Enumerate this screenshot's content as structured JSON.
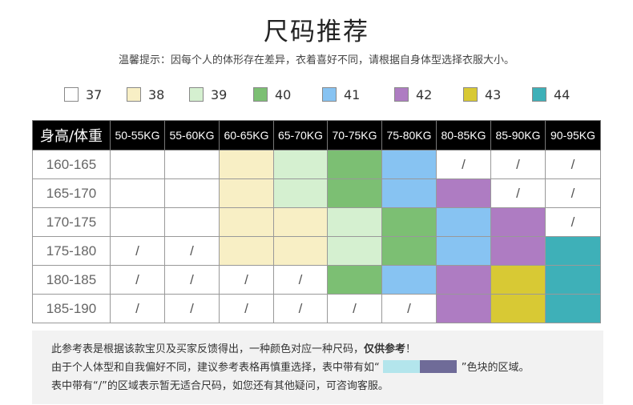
{
  "title": "尺码推荐",
  "tip": "温馨提示：因每个人的体形存在差异，衣着喜好不同，请根据自身体型选择衣服大小。",
  "legend": [
    {
      "size": "37",
      "color": "#ffffff"
    },
    {
      "size": "38",
      "color": "#f8efc5"
    },
    {
      "size": "39",
      "color": "#d5f0d0"
    },
    {
      "size": "40",
      "color": "#7cbf73"
    },
    {
      "size": "41",
      "color": "#87c3f2"
    },
    {
      "size": "42",
      "color": "#ae7cc2"
    },
    {
      "size": "43",
      "color": "#d8c934"
    },
    {
      "size": "44",
      "color": "#3eb0b8"
    }
  ],
  "table": {
    "corner": "身高/体重",
    "weights": [
      "50-55KG",
      "55-60KG",
      "60-65KG",
      "65-70KG",
      "70-75KG",
      "75-80KG",
      "80-85KG",
      "85-90KG",
      "90-95KG"
    ],
    "rows": [
      {
        "height": "160-165",
        "cells": [
          "",
          "",
          "38",
          "39",
          "40",
          "41",
          "/",
          "/",
          "/"
        ]
      },
      {
        "height": "165-170",
        "cells": [
          "",
          "",
          "38",
          "39",
          "40",
          "41",
          "42",
          "/",
          "/"
        ]
      },
      {
        "height": "170-175",
        "cells": [
          "",
          "",
          "38",
          "38",
          "39",
          "40",
          "41",
          "42",
          "/"
        ]
      },
      {
        "height": "175-180",
        "cells": [
          "/",
          "/",
          "38",
          "38",
          "39",
          "40",
          "41",
          "42",
          "44"
        ]
      },
      {
        "height": "180-185",
        "cells": [
          "/",
          "/",
          "/",
          "/",
          "40",
          "41",
          "42",
          "43",
          "44"
        ]
      },
      {
        "height": "185-190",
        "cells": [
          "/",
          "/",
          "/",
          "/",
          "/",
          "/",
          "42",
          "43",
          "44"
        ]
      }
    ]
  },
  "notes": {
    "line1_text": "此参考表是根据该款宝贝及买家反馈得出，一种颜色对应一种尺码，",
    "line1_bold": "仅供参考",
    "line1_end": "！",
    "line2_start": "由于个人体型和自我偏好不同，建议参考表格再慎重选择，表中带有如“",
    "line2_end": "”色块的区域。",
    "line2_colors": [
      "#b3e5ec",
      "#6f6b98"
    ],
    "line3": "表中带有“/”的区域表示暂无适合尺码，如您还有其他疑问，可咨询客服。"
  }
}
